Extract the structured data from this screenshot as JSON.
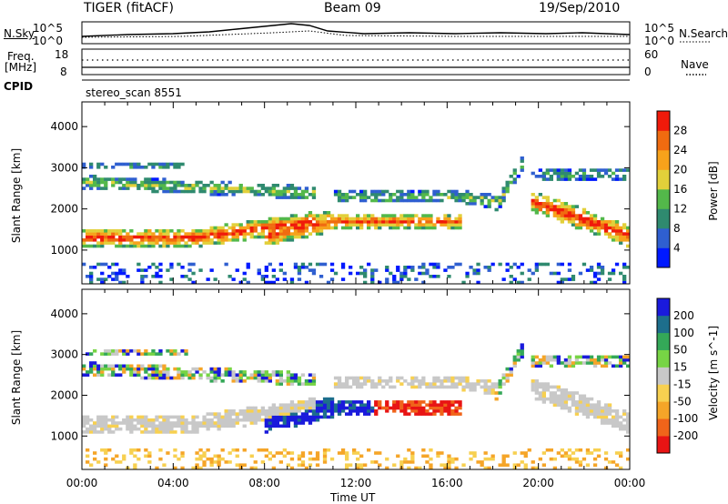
{
  "header": {
    "radar": "TIGER (fitACF)",
    "beam": "Beam 09",
    "date": "19/Sep/2010"
  },
  "top_panel": {
    "left_label": "N.Sky",
    "left_ticks": [
      "10^5",
      "10^0"
    ],
    "right_label": "N.Search",
    "right_ticks": [
      "10^5",
      "10^0"
    ]
  },
  "freq_panel": {
    "left_label": [
      "Freq.",
      "[MHz]"
    ],
    "left_ticks": [
      "18",
      "8"
    ],
    "right_label": "Nave",
    "right_ticks": [
      "60",
      "0"
    ]
  },
  "cpid": {
    "label": "CPID",
    "value": "stereo_scan 8551"
  },
  "chart_data": [
    {
      "type": "heatmap",
      "name": "power",
      "ylabel": "Slant Range [km]",
      "yticks": [
        "1000",
        "2000",
        "3000",
        "4000"
      ],
      "ylim": [
        180,
        4600
      ],
      "xlim": [
        0,
        24
      ],
      "colorbar_label": "Power [dB]",
      "colorbar_ticks": [
        "4",
        "8",
        "12",
        "16",
        "20",
        "24",
        "28"
      ],
      "colorbar_colors": [
        "#0019ff",
        "#2f5fd0",
        "#2f8a6f",
        "#53b84a",
        "#e2d03a",
        "#f7a21b",
        "#f06b10",
        "#f01a0a"
      ]
    },
    {
      "type": "heatmap",
      "name": "velocity",
      "ylabel": "Slant Range [km]",
      "yticks": [
        "1000",
        "2000",
        "3000",
        "4000"
      ],
      "ylim": [
        180,
        4600
      ],
      "xlim": [
        0,
        24
      ],
      "colorbar_label": "Velocity [m s^-1]",
      "colorbar_ticks": [
        "200",
        "100",
        "50",
        "15",
        "-15",
        "-50",
        "-100",
        "-200"
      ],
      "colorbar_colors": [
        "#1a1adc",
        "#1d6e8c",
        "#34a858",
        "#77d445",
        "#c8c8c8",
        "#f7d050",
        "#f5a528",
        "#f0641a",
        "#e81414"
      ]
    }
  ],
  "xaxis": {
    "ticks": [
      "00:00",
      "04:00",
      "08:00",
      "12:00",
      "16:00",
      "20:00",
      "00:00"
    ],
    "label": "Time UT"
  }
}
